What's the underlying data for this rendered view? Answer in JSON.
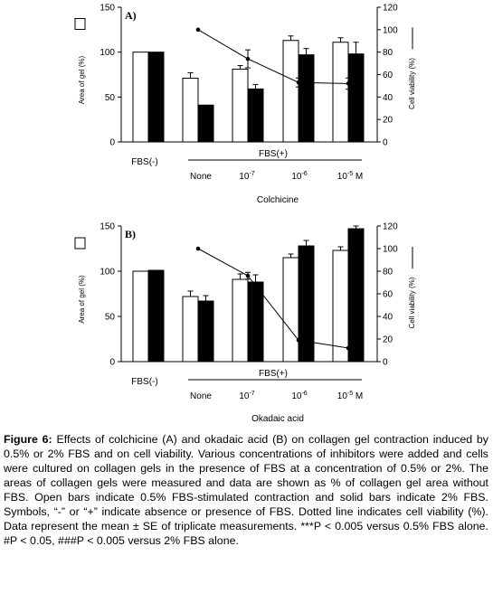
{
  "chart_data": [
    {
      "type": "bar",
      "panel_label": "A)",
      "categories": [
        "FBS(-)",
        "None",
        "10-7",
        "10-6",
        "10-5"
      ],
      "category_labels": [
        {
          "text": "None",
          "sup": ""
        },
        {
          "text": "10",
          "sup": "-7"
        },
        {
          "text": "10",
          "sup": "-6"
        },
        {
          "text": "10",
          "sup": "-5",
          "suffix": " M"
        }
      ],
      "series": [
        {
          "name": "0.5% FBS",
          "style": "open",
          "values": [
            100,
            71,
            81,
            113,
            111
          ],
          "errors": [
            0,
            6,
            4,
            5,
            5
          ]
        },
        {
          "name": "2% FBS",
          "style": "solid",
          "values": [
            100,
            41,
            59,
            97,
            98
          ],
          "errors": [
            0,
            0,
            5,
            7,
            13
          ]
        }
      ],
      "viability": {
        "x_index": [
          1,
          2,
          3,
          4
        ],
        "values": [
          100,
          74,
          53,
          52
        ],
        "errors": [
          0,
          8,
          4,
          5
        ]
      },
      "ylabel_left": "Area of gel  (%)",
      "ylabel_right": "Cell viability  (%)",
      "ylim": [
        0,
        150
      ],
      "yticks": [
        0,
        50,
        100,
        150
      ],
      "ylim_right": [
        0,
        120
      ],
      "yticks_right": [
        0,
        20,
        40,
        60,
        80,
        100,
        120
      ],
      "group_label_neg": "FBS(-)",
      "group_label_pos": "FBS(+)",
      "xlabel": "Colchicine"
    },
    {
      "type": "bar",
      "panel_label": "B)",
      "categories": [
        "FBS(-)",
        "None",
        "10-7",
        "10-6",
        "10-5"
      ],
      "category_labels": [
        {
          "text": "None",
          "sup": ""
        },
        {
          "text": "10",
          "sup": "-7"
        },
        {
          "text": "10",
          "sup": "-6"
        },
        {
          "text": "10",
          "sup": "-5",
          "suffix": " M"
        }
      ],
      "series": [
        {
          "name": "0.5% FBS",
          "style": "open",
          "values": [
            100,
            72,
            91,
            115,
            123
          ],
          "errors": [
            0,
            6,
            6,
            4,
            4
          ]
        },
        {
          "name": "2% FBS",
          "style": "solid",
          "values": [
            101,
            67,
            88,
            128,
            147
          ],
          "errors": [
            0,
            6,
            8,
            6,
            3
          ]
        }
      ],
      "viability": {
        "x_index": [
          1,
          2,
          3,
          4
        ],
        "values": [
          100,
          76,
          19,
          12
        ],
        "errors": [
          0,
          3,
          0,
          0
        ]
      },
      "ylabel_left": "Area of gel  (%)",
      "ylabel_right": "Cell viability  (%)",
      "ylim": [
        0,
        150
      ],
      "yticks": [
        0,
        50,
        100,
        150
      ],
      "ylim_right": [
        0,
        120
      ],
      "yticks_right": [
        0,
        20,
        40,
        60,
        80,
        100,
        120
      ],
      "group_label_neg": "FBS(-)",
      "group_label_pos": "FBS(+)",
      "xlabel": "Okadaic acid"
    }
  ],
  "caption": {
    "label": "Figure 6:",
    "text": "Effects of colchicine (A) and okadaic acid (B) on collagen gel contraction induced by 0.5% or 2% FBS and on cell viability. Various concentrations of inhibitors were added and cells were cultured on collagen gels in the presence of FBS at a concentration of 0.5% or 2%.  The areas of collagen gels were measured and data are shown as % of collagen gel area without FBS.  Open bars indicate 0.5% FBS-stimulated contraction and solid bars indicate 2% FBS.  Symbols, “-” or “+” indicate absence or presence of FBS. Dotted line indicates cell viability (%).  Data represent the mean ± SE of triplicate measurements.  ***P < 0.005 versus 0.5% FBS alone.  #P < 0.05, ###P < 0.005 versus 2% FBS alone."
  }
}
